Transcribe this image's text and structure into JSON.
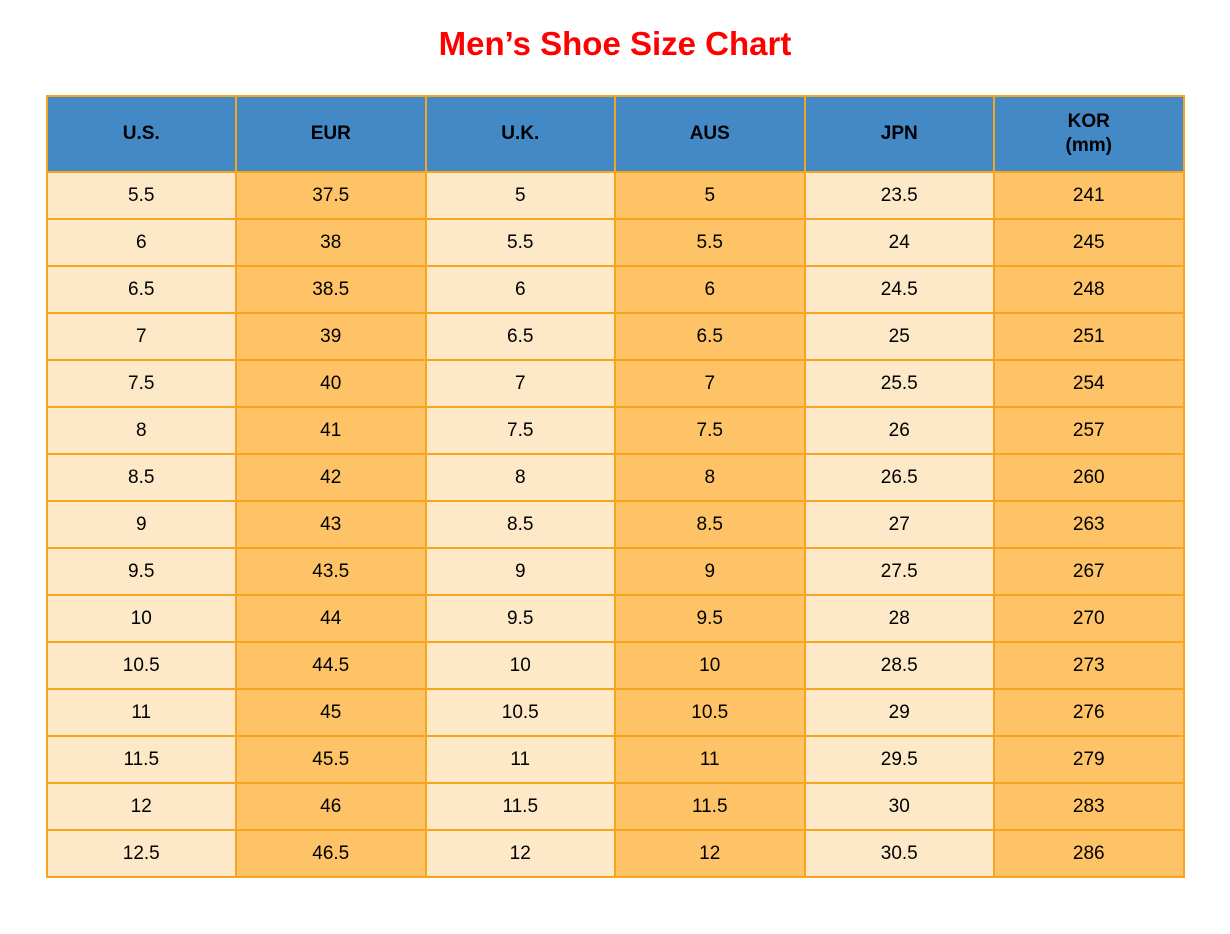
{
  "page_title": "Men’s Shoe Size Chart",
  "colors": {
    "title": "#ff0000",
    "header_bg": "#4289c6",
    "cell_light": "#fde8c8",
    "cell_orange": "#fec367",
    "grid_border": "#f7a41e",
    "text": "#000000"
  },
  "chart_data": {
    "type": "table",
    "title": "Men’s Shoe Size Chart",
    "columns": [
      {
        "key": "us",
        "label": "U.S."
      },
      {
        "key": "eur",
        "label": "EUR"
      },
      {
        "key": "uk",
        "label": "U.K."
      },
      {
        "key": "aus",
        "label": "AUS"
      },
      {
        "key": "jpn",
        "label": "JPN"
      },
      {
        "key": "kor",
        "label": "KOR",
        "sub_label": "(mm)"
      }
    ],
    "rows": [
      [
        "5.5",
        "37.5",
        "5",
        "5",
        "23.5",
        "241"
      ],
      [
        "6",
        "38",
        "5.5",
        "5.5",
        "24",
        "245"
      ],
      [
        "6.5",
        "38.5",
        "6",
        "6",
        "24.5",
        "248"
      ],
      [
        "7",
        "39",
        "6.5",
        "6.5",
        "25",
        "251"
      ],
      [
        "7.5",
        "40",
        "7",
        "7",
        "25.5",
        "254"
      ],
      [
        "8",
        "41",
        "7.5",
        "7.5",
        "26",
        "257"
      ],
      [
        "8.5",
        "42",
        "8",
        "8",
        "26.5",
        "260"
      ],
      [
        "9",
        "43",
        "8.5",
        "8.5",
        "27",
        "263"
      ],
      [
        "9.5",
        "43.5",
        "9",
        "9",
        "27.5",
        "267"
      ],
      [
        "10",
        "44",
        "9.5",
        "9.5",
        "28",
        "270"
      ],
      [
        "10.5",
        "44.5",
        "10",
        "10",
        "28.5",
        "273"
      ],
      [
        "11",
        "45",
        "10.5",
        "10.5",
        "29",
        "276"
      ],
      [
        "11.5",
        "45.5",
        "11",
        "11",
        "29.5",
        "279"
      ],
      [
        "12",
        "46",
        "11.5",
        "11.5",
        "30",
        "283"
      ],
      [
        "12.5",
        "46.5",
        "12",
        "12",
        "30.5",
        "286"
      ]
    ]
  }
}
